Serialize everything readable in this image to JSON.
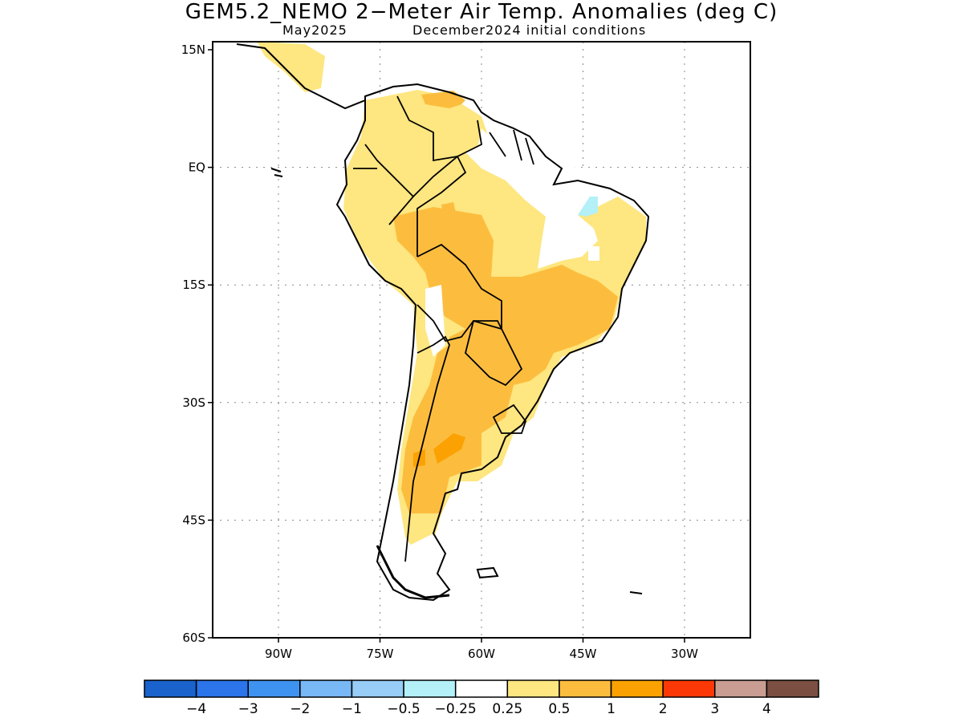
{
  "title": "GEM5.2_NEMO 2−Meter Air Temp. Anomalies (deg C)",
  "subtitle_left": "May2025",
  "subtitle_right": "December2024 initial conditions",
  "lat_ticks": [
    {
      "label": "15N",
      "lat": 15
    },
    {
      "label": "EQ",
      "lat": 0
    },
    {
      "label": "15S",
      "lat": -15
    },
    {
      "label": "30S",
      "lat": -30
    },
    {
      "label": "45S",
      "lat": -45
    },
    {
      "label": "60S",
      "lat": -60
    }
  ],
  "lon_ticks": [
    {
      "label": "90W",
      "lon": -90
    },
    {
      "label": "75W",
      "lon": -75
    },
    {
      "label": "60W",
      "lon": -60
    },
    {
      "label": "45W",
      "lon": -45
    },
    {
      "label": "30W",
      "lon": -30
    }
  ],
  "colorbar": {
    "colors": [
      "#1a63cc",
      "#2b74ea",
      "#3f93f0",
      "#78b8f5",
      "#97cdf7",
      "#b3f0f8",
      "#ffffff",
      "#fee680",
      "#fcbd3e",
      "#fba202",
      "#fb3806",
      "#c99d92",
      "#7b4f42"
    ],
    "labels": [
      "−4",
      "−3",
      "−2",
      "−1",
      "−0.5",
      "−0.25",
      "0.25",
      "0.5",
      "1",
      "2",
      "3",
      "4"
    ]
  }
}
